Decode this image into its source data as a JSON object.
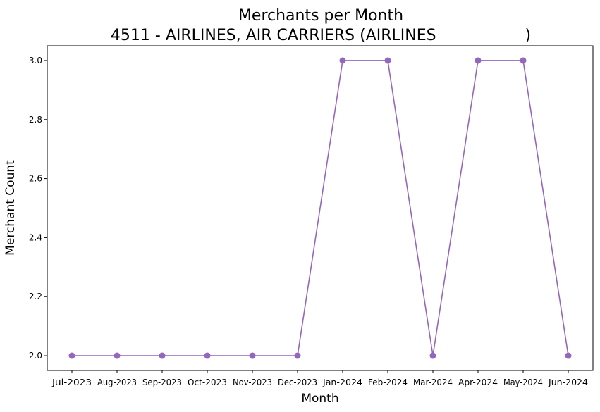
{
  "chart_data": {
    "type": "line",
    "title": "Merchants per Month",
    "subtitle": "4511 - AIRLINES, AIR CARRIERS (AIRLINES                  )",
    "xlabel": "Month",
    "ylabel": "Merchant Count",
    "categories": [
      "Jul-2023",
      "Aug-2023",
      "Sep-2023",
      "Oct-2023",
      "Nov-2023",
      "Dec-2023",
      "Jan-2024",
      "Feb-2024",
      "Mar-2024",
      "Apr-2024",
      "May-2024",
      "Jun-2024"
    ],
    "values": [
      2,
      2,
      2,
      2,
      2,
      2,
      3,
      3,
      2,
      3,
      3,
      2
    ],
    "ylim": [
      1.95,
      3.05
    ],
    "yticks": [
      2.0,
      2.2,
      2.4,
      2.6,
      2.8,
      3.0
    ],
    "ytick_labels": [
      "2.0",
      "2.2",
      "2.4",
      "2.6",
      "2.8",
      "3.0"
    ],
    "grid": false,
    "legend": "none",
    "color": "#9467bd",
    "marker": "circle"
  }
}
